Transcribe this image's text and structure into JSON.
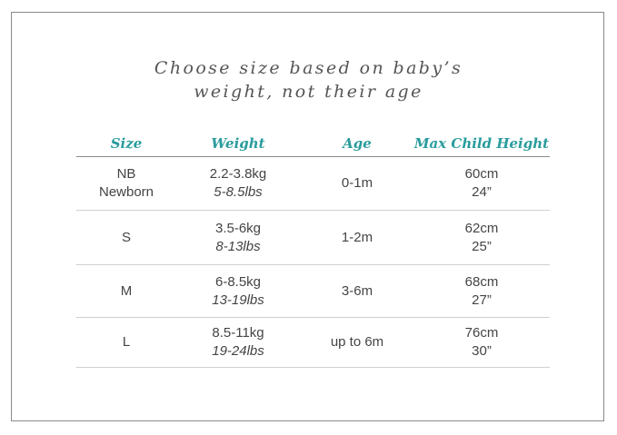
{
  "title": {
    "line1": "Choose size based on baby’s",
    "line2": "weight, not their age"
  },
  "headers": {
    "size": "Size",
    "weight": "Weight",
    "age": "Age",
    "height": "Max Child Height"
  },
  "accent_color": "#2a9c9c",
  "rows": [
    {
      "size": "NB",
      "size_name": "Newborn",
      "kg": "2.2-3.8kg",
      "lbs": "5-8.5lbs",
      "age": "0-1m",
      "cm": "60cm",
      "inches": "24”"
    },
    {
      "size": "S",
      "size_name": "",
      "kg": "3.5-6kg",
      "lbs": "8-13lbs",
      "age": "1-2m",
      "cm": "62cm",
      "inches": "25”"
    },
    {
      "size": "M",
      "size_name": "",
      "kg": "6-8.5kg",
      "lbs": "13-19lbs",
      "age": "3-6m",
      "cm": "68cm",
      "inches": "27”"
    },
    {
      "size": "L",
      "size_name": "",
      "kg": "8.5-11kg",
      "lbs": "19-24lbs",
      "age": "up to 6m",
      "cm": "76cm",
      "inches": "30”"
    }
  ]
}
